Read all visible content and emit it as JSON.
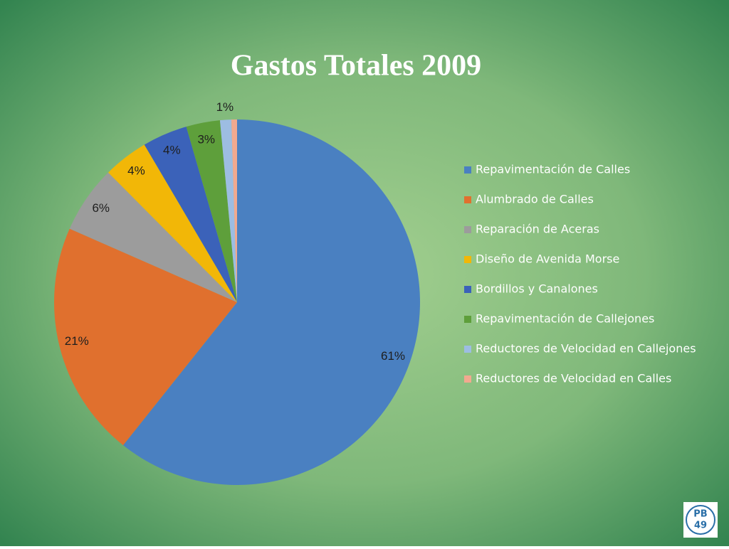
{
  "chart_data": {
    "type": "pie",
    "title": "Gastos Totales 2009",
    "categories": [
      "Repavimentación de Calles",
      "Alumbrado de Calles",
      "Reparación de Aceras",
      "Diseño de Avenida Morse",
      "Bordillos y Canalones",
      "Repavimentación de Callejones",
      "Reductores de Velocidad en Callejones",
      "Reductores de Velocidad en Calles"
    ],
    "values": [
      61,
      21,
      6,
      4,
      4,
      3,
      1,
      0.5
    ],
    "value_labels": [
      "61%",
      "21%",
      "6%",
      "4%",
      "4%",
      "3%",
      "1%",
      null
    ],
    "colors": [
      "#4a80c1",
      "#e0702e",
      "#9c9c9c",
      "#f2b707",
      "#3b62b9",
      "#5e9f3b",
      "#9dbde2",
      "#f2a98f"
    ],
    "legend": "right"
  },
  "logo": {
    "top": "PB",
    "bottom": "49"
  }
}
